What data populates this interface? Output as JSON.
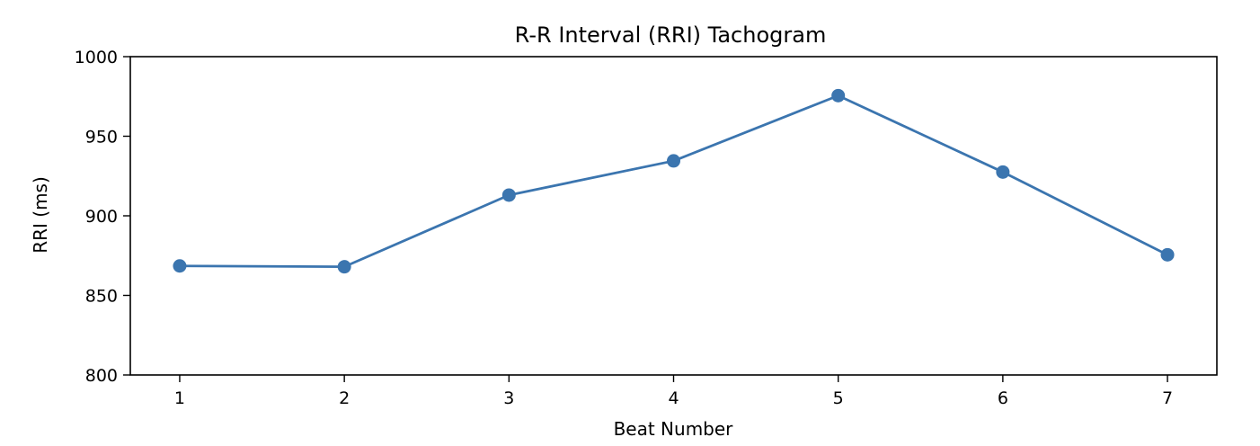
{
  "chart_data": {
    "type": "line",
    "title": "R-R Interval (RRI) Tachogram",
    "xlabel": "Beat Number",
    "ylabel": "RRI (ms)",
    "x": [
      1,
      2,
      3,
      4,
      5,
      6,
      7
    ],
    "xticks": [
      "1",
      "2",
      "3",
      "4",
      "5",
      "6",
      "7"
    ],
    "yticks": [
      "800",
      "850",
      "900",
      "950",
      "1000"
    ],
    "xlim": [
      0.7,
      7.3
    ],
    "ylim": [
      800,
      1000
    ],
    "series": [
      {
        "values": [
          868.5,
          868,
          913,
          934.5,
          975.5,
          927.5,
          875.5
        ],
        "color": "#3b75af",
        "marker": "circle"
      }
    ],
    "grid": false,
    "legend": "none"
  }
}
